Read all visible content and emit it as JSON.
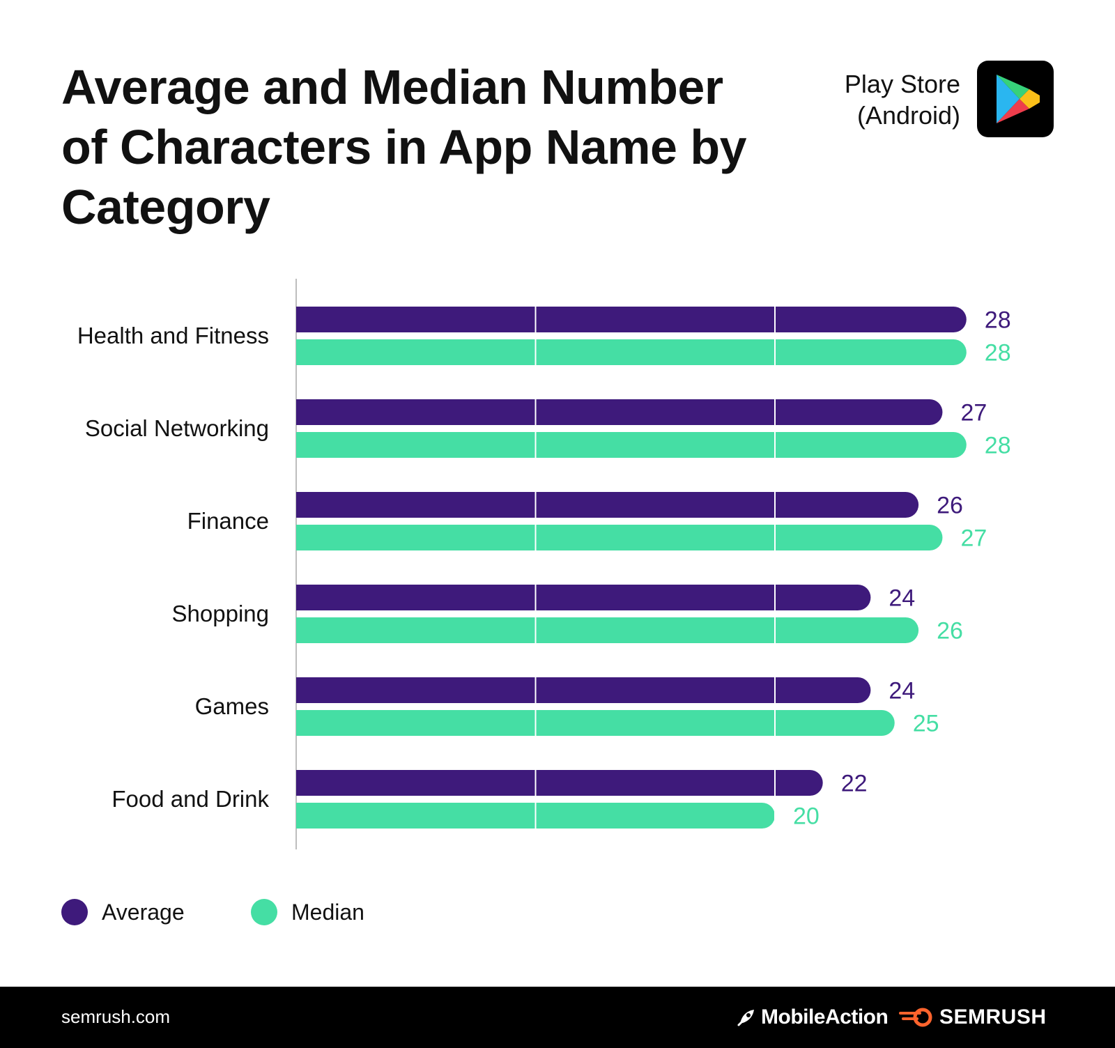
{
  "title": "Average and Median Number of Characters in App Name by Category",
  "platform": {
    "line1": "Play Store",
    "line2": "(Android)",
    "icon": "google-play-icon"
  },
  "colors": {
    "average": "#3e1a7b",
    "median": "#45dea4",
    "text": "#111111",
    "footer_bg": "#000000"
  },
  "chart_data": {
    "type": "bar",
    "orientation": "horizontal",
    "title": "Average and Median Number of Characters in App Name by Category",
    "categories": [
      "Health and Fitness",
      "Social Networking",
      "Finance",
      "Shopping",
      "Games",
      "Food and Drink"
    ],
    "series": [
      {
        "name": "Average",
        "values": [
          28,
          27,
          26,
          24,
          24,
          22
        ]
      },
      {
        "name": "Median",
        "values": [
          28,
          28,
          27,
          26,
          25,
          20
        ]
      }
    ],
    "xlim": [
      0,
      30
    ],
    "xlabel": "",
    "ylabel": "",
    "gridlines": [
      10,
      20
    ],
    "legend": "bottom-left"
  },
  "legend": {
    "average": "Average",
    "median": "Median"
  },
  "footer": {
    "site": "semrush.com",
    "brand1": "MobileAction",
    "brand2": "SEMRUSH"
  }
}
